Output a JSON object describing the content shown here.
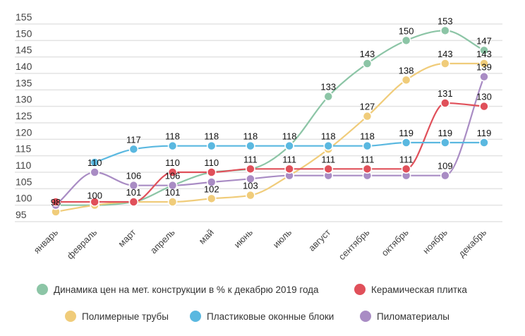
{
  "chart_data": {
    "type": "line",
    "categories": [
      "январь",
      "февраль",
      "март",
      "апрель",
      "май",
      "июнь",
      "июль",
      "август",
      "сентябрь",
      "октябрь",
      "ноябрь",
      "декабрь"
    ],
    "ylim": [
      95,
      155
    ],
    "yticks": [
      95,
      100,
      105,
      110,
      115,
      120,
      125,
      130,
      135,
      140,
      145,
      150,
      155
    ],
    "grid": true,
    "legend_placement": "bottom",
    "series": [
      {
        "name": "Динамика цен на мет. конструкции в % к декабрю 2019 года",
        "color": "#8cc5a6",
        "values": [
          100,
          100,
          101,
          106,
          110,
          111,
          118,
          133,
          143,
          150,
          153,
          147
        ],
        "labels": [
          null,
          null,
          null,
          null,
          null,
          null,
          null,
          "133",
          "143",
          "150",
          "153",
          "147"
        ]
      },
      {
        "name": "Керамическая плитка",
        "color": "#e0505a",
        "values": [
          101,
          101,
          101,
          110,
          110,
          111,
          111,
          111,
          111,
          111,
          131,
          130
        ],
        "labels": [
          null,
          null,
          null,
          "110",
          "110",
          "111",
          "111",
          "111",
          "111",
          "111",
          "131",
          "130"
        ]
      },
      {
        "name": "Полимерные трубы",
        "color": "#f0cc7a",
        "values": [
          98,
          100,
          101,
          101,
          102,
          103,
          109,
          117,
          127,
          138,
          143,
          143
        ],
        "labels": [
          "98",
          "100",
          "101",
          "101",
          "102",
          "103",
          null,
          null,
          "127",
          "138",
          "143",
          "143"
        ]
      },
      {
        "name": "Пластиковые оконные блоки",
        "color": "#5ab8e0",
        "values": [
          null,
          113,
          117,
          118,
          118,
          118,
          118,
          118,
          118,
          119,
          119,
          119
        ],
        "labels": [
          null,
          null,
          "117",
          "118",
          "118",
          "118",
          "118",
          "118",
          "118",
          "119",
          "119",
          "119"
        ]
      },
      {
        "name": "Пиломатериалы",
        "color": "#a98cc4",
        "values": [
          100,
          110,
          106,
          106,
          107,
          108,
          109,
          109,
          109,
          109,
          109,
          139
        ],
        "labels": [
          null,
          "110",
          "106",
          "106",
          null,
          null,
          null,
          null,
          null,
          null,
          "109",
          "139"
        ]
      }
    ]
  }
}
